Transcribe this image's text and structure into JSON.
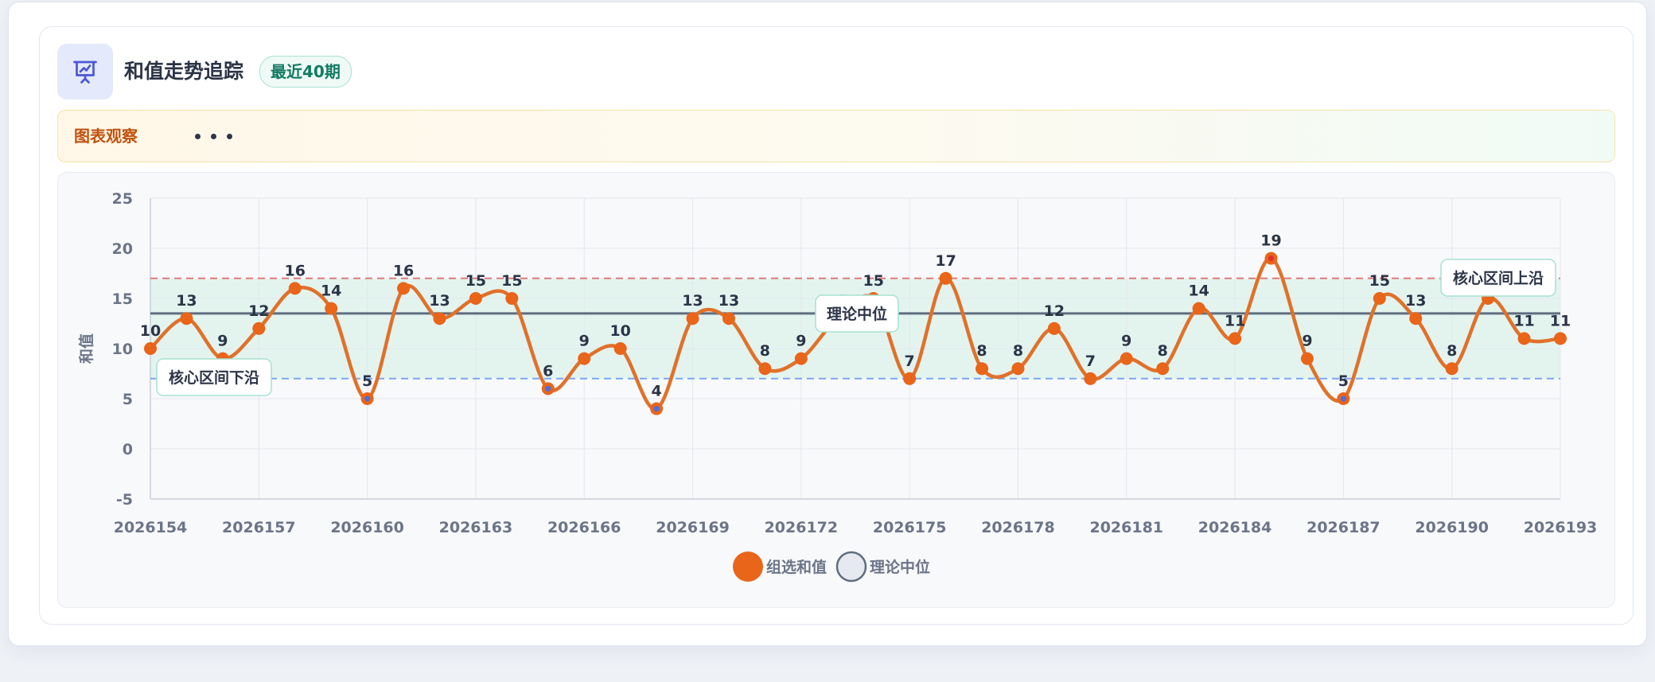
{
  "header": {
    "title": "和值走势追踪",
    "badge": "最近40期",
    "icon": "presentation-chart-icon"
  },
  "observation": {
    "label": "图表观察",
    "ellipsis": "• • •"
  },
  "colors": {
    "series": "#e0712a",
    "marker": "#e8651a",
    "median_line": "#5f6d80",
    "upper_line": "#e07a7a",
    "lower_line": "#7ba7f0",
    "band": "#dff3ec",
    "low_point_center": "#4a6ee0",
    "high_point_center": "#e03030"
  },
  "chart_data": {
    "type": "line",
    "ylabel": "和值",
    "ylim": [
      -5,
      25
    ],
    "yticks": [
      -5,
      0,
      5,
      10,
      15,
      20,
      25
    ],
    "x": [
      "2026154",
      "2026155",
      "2026156",
      "2026157",
      "2026158",
      "2026159",
      "2026160",
      "2026161",
      "2026162",
      "2026163",
      "2026164",
      "2026165",
      "2026166",
      "2026167",
      "2026168",
      "2026169",
      "2026170",
      "2026171",
      "2026172",
      "2026173",
      "2026174",
      "2026175",
      "2026176",
      "2026177",
      "2026178",
      "2026179",
      "2026180",
      "2026181",
      "2026182",
      "2026183",
      "2026184",
      "2026185",
      "2026186",
      "2026187",
      "2026188",
      "2026189",
      "2026190",
      "2026191",
      "2026192",
      "2026193"
    ],
    "xtick_labels": [
      "2026154",
      "2026157",
      "2026160",
      "2026163",
      "2026166",
      "2026169",
      "2026172",
      "2026175",
      "2026178",
      "2026181",
      "2026184",
      "2026187",
      "2026190",
      "2026193"
    ],
    "series": [
      {
        "name": "组选和值",
        "values": [
          10,
          13,
          9,
          12,
          16,
          14,
          5,
          16,
          13,
          15,
          15,
          6,
          9,
          10,
          4,
          13,
          13,
          8,
          9,
          13,
          15,
          7,
          17,
          8,
          8,
          12,
          7,
          9,
          8,
          14,
          11,
          19,
          9,
          5,
          15,
          13,
          8,
          15,
          11,
          11
        ]
      },
      {
        "name": "理论中位",
        "values": [
          13.5,
          13.5,
          13.5,
          13.5,
          13.5,
          13.5,
          13.5,
          13.5,
          13.5,
          13.5,
          13.5,
          13.5,
          13.5,
          13.5,
          13.5,
          13.5,
          13.5,
          13.5,
          13.5,
          13.5,
          13.5,
          13.5,
          13.5,
          13.5,
          13.5,
          13.5,
          13.5,
          13.5,
          13.5,
          13.5,
          13.5,
          13.5,
          13.5,
          13.5,
          13.5,
          13.5,
          13.5,
          13.5,
          13.5,
          13.5
        ]
      }
    ],
    "band": {
      "lower": 7,
      "upper": 17
    },
    "annotations": [
      {
        "text": "核心区间下沿",
        "y": 7,
        "placement": "left"
      },
      {
        "text": "理论中位",
        "y": 13.5,
        "placement": "center"
      },
      {
        "text": "核心区间上沿",
        "y": 17,
        "placement": "right"
      }
    ],
    "legend": {
      "placement": "bottom-center",
      "entries": [
        "组选和值",
        "理论中位"
      ]
    },
    "grid": true
  }
}
